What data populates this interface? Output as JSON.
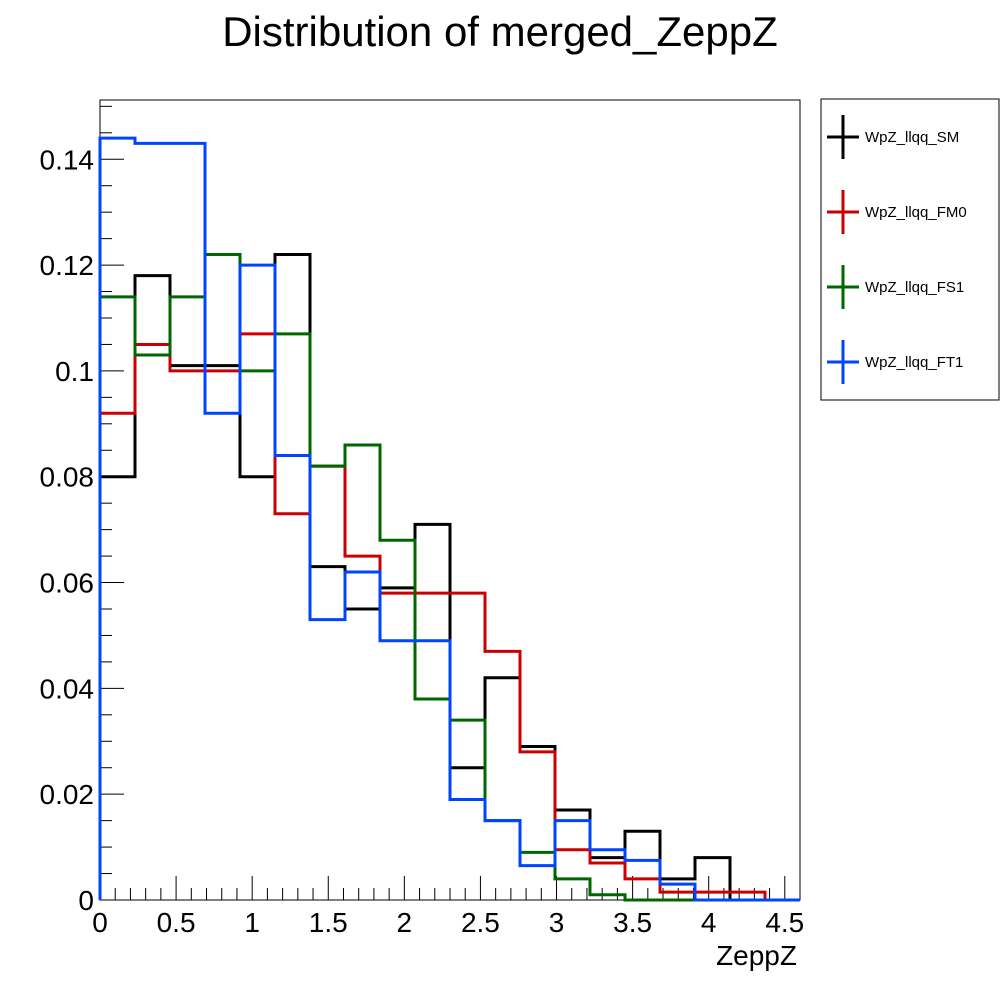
{
  "chart_data": {
    "type": "line",
    "style": "step-histogram",
    "title": "Distribution of merged_ZeppZ",
    "xlabel": "ZeppZ",
    "ylabel": "",
    "xlim": [
      0,
      4.6
    ],
    "ylim": [
      0,
      0.1512
    ],
    "x_ticks": [
      0,
      0.5,
      1,
      1.5,
      2,
      2.5,
      3,
      3.5,
      4,
      4.5
    ],
    "x_tick_labels": [
      "0",
      "0.5",
      "1",
      "1.5",
      "2",
      "2.5",
      "3",
      "3.5",
      "4",
      "4.5"
    ],
    "y_ticks": [
      0,
      0.02,
      0.04,
      0.06,
      0.08,
      0.1,
      0.12,
      0.14
    ],
    "y_tick_labels": [
      "0",
      "0.02",
      "0.04",
      "0.06",
      "0.08",
      "0.1",
      "0.12",
      "0.14"
    ],
    "bin_edges": [
      0,
      0.23,
      0.46,
      0.69,
      0.92,
      1.15,
      1.38,
      1.61,
      1.84,
      2.07,
      2.3,
      2.53,
      2.76,
      2.99,
      3.22,
      3.45,
      3.68,
      3.91,
      4.14,
      4.37,
      4.6
    ],
    "legend_position": "right",
    "series": [
      {
        "name": "WpZ_llqq_SM",
        "color": "#000000",
        "values": [
          0.08,
          0.118,
          0.101,
          0.101,
          0.08,
          0.122,
          0.063,
          0.055,
          0.059,
          0.071,
          0.025,
          0.042,
          0.029,
          0.017,
          0.008,
          0.013,
          0.004,
          0.008,
          0.0,
          0.0
        ]
      },
      {
        "name": "WpZ_llqq_FM0",
        "color": "#cc0000",
        "values": [
          0.092,
          0.105,
          0.1,
          0.1,
          0.107,
          0.073,
          0.082,
          0.065,
          0.058,
          0.058,
          0.058,
          0.047,
          0.028,
          0.0095,
          0.007,
          0.004,
          0.0015,
          0.0015,
          0.0015,
          0.0
        ]
      },
      {
        "name": "WpZ_llqq_FS1",
        "color": "#006600",
        "values": [
          0.114,
          0.103,
          0.114,
          0.122,
          0.1,
          0.107,
          0.082,
          0.086,
          0.068,
          0.038,
          0.034,
          0.015,
          0.009,
          0.004,
          0.001,
          0.0,
          0.0,
          0.0,
          0.0,
          0.0
        ]
      },
      {
        "name": "WpZ_llqq_FT1",
        "color": "#0044ff",
        "values": [
          0.144,
          0.143,
          0.143,
          0.092,
          0.12,
          0.084,
          0.053,
          0.062,
          0.049,
          0.049,
          0.019,
          0.015,
          0.0065,
          0.015,
          0.0095,
          0.0075,
          0.003,
          0.0,
          0.0,
          0.0
        ]
      }
    ]
  }
}
